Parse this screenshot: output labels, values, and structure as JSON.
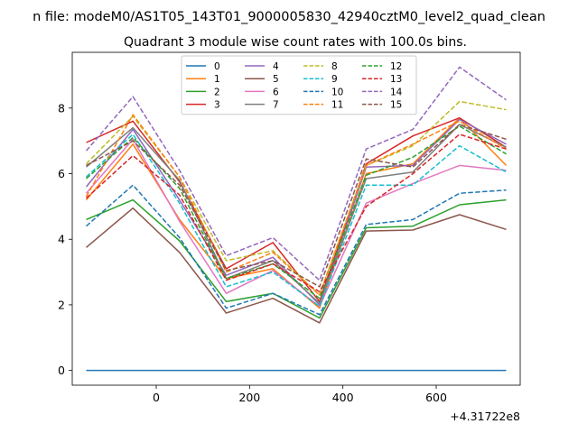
{
  "chart_data": {
    "type": "line",
    "suptitle": "n file: modeM0/AS1T05_143T01_9000005830_42940cztM0_level2_quad_clean",
    "title": "Quadrant 3 module wise count rates with 100.0s bins.",
    "xlabel": "",
    "ylabel": "",
    "x_offset_label": "+4.31722e8",
    "x": [
      -150,
      -50,
      50,
      150,
      250,
      350,
      450,
      550,
      650,
      750
    ],
    "xlim": [
      -180,
      780
    ],
    "ylim": [
      -0.45,
      9.7
    ],
    "xticks": [
      0,
      200,
      400,
      600
    ],
    "xtick_labels": [
      "0",
      "200",
      "400",
      "600"
    ],
    "yticks": [
      0,
      2,
      4,
      6,
      8
    ],
    "ytick_labels": [
      "0",
      "2",
      "4",
      "6",
      "8"
    ],
    "legend": {
      "location": "top-center",
      "columns": 4
    },
    "series": [
      {
        "name": "0",
        "color": "#1f77b4",
        "style": "solid",
        "values": [
          0,
          0,
          0,
          0,
          0,
          0,
          0,
          0,
          0,
          0
        ]
      },
      {
        "name": "1",
        "color": "#ff7f0e",
        "style": "solid",
        "values": [
          5.2,
          6.9,
          4.6,
          2.8,
          3.1,
          1.9,
          6.0,
          6.3,
          7.7,
          6.25
        ]
      },
      {
        "name": "2",
        "color": "#2ca02c",
        "style": "solid",
        "values": [
          4.6,
          5.2,
          3.95,
          2.1,
          2.35,
          1.6,
          4.35,
          4.4,
          5.05,
          5.2
        ]
      },
      {
        "name": "3",
        "color": "#d62728",
        "style": "solid",
        "values": [
          6.95,
          7.6,
          5.75,
          3.1,
          3.9,
          2.1,
          6.3,
          7.15,
          7.7,
          6.8
        ]
      },
      {
        "name": "4",
        "color": "#9467bd",
        "style": "solid",
        "values": [
          5.6,
          7.35,
          5.2,
          2.9,
          3.45,
          2.0,
          6.2,
          6.25,
          7.65,
          6.9
        ]
      },
      {
        "name": "5",
        "color": "#8c564b",
        "style": "solid",
        "values": [
          3.75,
          4.95,
          3.6,
          1.75,
          2.2,
          1.45,
          4.25,
          4.28,
          4.75,
          4.3
        ]
      },
      {
        "name": "6",
        "color": "#e377c2",
        "style": "solid",
        "values": [
          5.4,
          7.05,
          4.55,
          2.35,
          3.05,
          1.95,
          5.1,
          5.7,
          6.25,
          6.1
        ]
      },
      {
        "name": "7",
        "color": "#7f7f7f",
        "style": "solid",
        "values": [
          6.2,
          7.4,
          5.8,
          2.8,
          3.35,
          2.05,
          5.85,
          6.05,
          7.5,
          6.8
        ]
      },
      {
        "name": "8",
        "color": "#bcbd22",
        "style": "dashed",
        "values": [
          6.3,
          7.75,
          5.9,
          3.35,
          3.65,
          2.3,
          6.25,
          6.85,
          8.2,
          7.95
        ]
      },
      {
        "name": "9",
        "color": "#17becf",
        "style": "dashed",
        "values": [
          5.9,
          7.2,
          5.1,
          2.55,
          3.0,
          1.95,
          5.65,
          5.65,
          6.85,
          6.05
        ]
      },
      {
        "name": "10",
        "color": "#1f77b4",
        "style": "dashed",
        "values": [
          4.4,
          5.65,
          4.05,
          1.9,
          2.35,
          1.7,
          4.45,
          4.6,
          5.4,
          5.5
        ]
      },
      {
        "name": "11",
        "color": "#ff7f0e",
        "style": "dashed",
        "values": [
          5.3,
          7.8,
          5.9,
          3.0,
          3.6,
          2.3,
          6.25,
          6.9,
          7.6,
          6.75
        ]
      },
      {
        "name": "12",
        "color": "#2ca02c",
        "style": "dashed",
        "values": [
          5.85,
          7.1,
          5.55,
          2.8,
          3.25,
          2.2,
          5.95,
          6.5,
          7.45,
          6.6
        ]
      },
      {
        "name": "13",
        "color": "#d62728",
        "style": "dashed",
        "values": [
          5.25,
          6.55,
          5.35,
          2.75,
          3.25,
          2.4,
          5.0,
          6.0,
          7.2,
          6.75
        ]
      },
      {
        "name": "14",
        "color": "#9467bd",
        "style": "dashed",
        "values": [
          6.7,
          8.35,
          6.1,
          3.5,
          4.05,
          2.75,
          6.75,
          7.35,
          9.25,
          8.25
        ]
      },
      {
        "name": "15",
        "color": "#8c564b",
        "style": "dashed",
        "values": [
          6.25,
          7.0,
          5.65,
          3.05,
          3.35,
          2.55,
          6.45,
          6.2,
          7.5,
          7.05
        ]
      }
    ]
  }
}
